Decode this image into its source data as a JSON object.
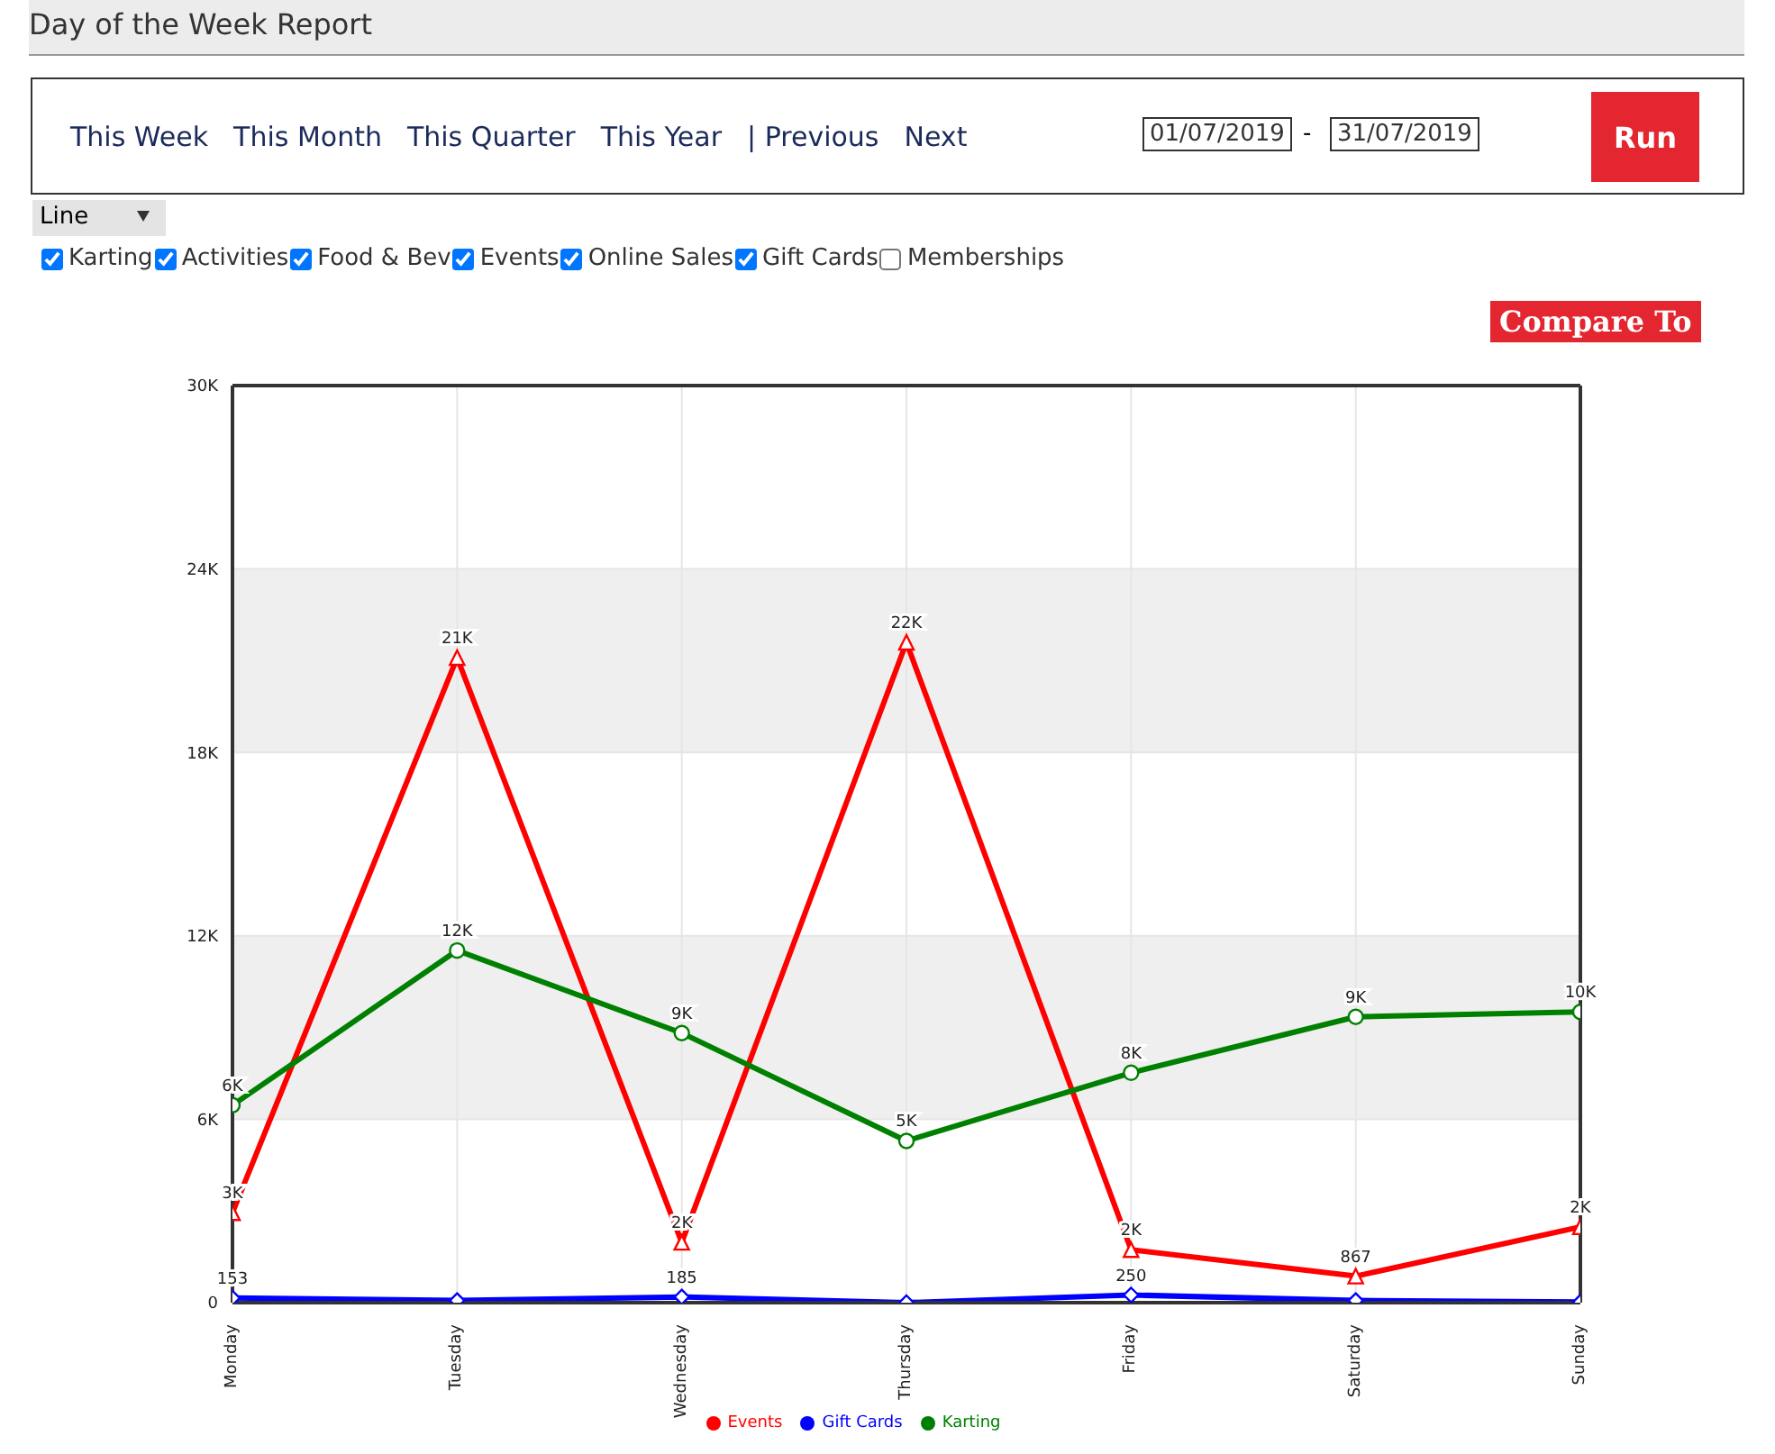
{
  "chart_data": {
    "type": "line",
    "title": "Day of the Week Report",
    "annotations": [
      "This Week",
      "This Month",
      "This Quarter",
      "This Year",
      "| Previous",
      "Next",
      "01/07/2019",
      "-",
      "31/07/2019",
      "Run",
      "Line",
      "Karting",
      "Activities",
      "Food & Bev",
      "Events",
      "Online Sales",
      "Gift Cards",
      "Memberships",
      "Compare To"
    ],
    "categories": [
      "Monday",
      "Tuesday",
      "Wednesday",
      "Thursday",
      "Friday",
      "Saturday",
      "Sunday"
    ],
    "series": [
      {
        "name": "Events",
        "color": "#ff0000",
        "marker": "triangle",
        "values": [
          2940,
          21100,
          1970,
          21600,
          1730,
          867,
          2480
        ],
        "value_labels": [
          "3K",
          "21K",
          "2K",
          "22K",
          "2K",
          "867",
          "2K"
        ]
      },
      {
        "name": "Gift Cards",
        "color": "#0000ff",
        "marker": "diamond",
        "values": [
          153,
          70,
          185,
          0,
          250,
          70,
          20
        ],
        "value_labels": [
          "153",
          null,
          "185",
          null,
          "250",
          null,
          null
        ]
      },
      {
        "name": "Karting",
        "color": "#008000",
        "marker": "circle",
        "values": [
          6460,
          11520,
          8820,
          5290,
          7520,
          9350,
          9510
        ],
        "value_labels": [
          "6K",
          "12K",
          "9K",
          "5K",
          "8K",
          "9K",
          "10K"
        ]
      }
    ],
    "ylim": [
      0,
      30000
    ],
    "yticks": [
      0,
      {
        "value": 6000,
        "label": "6K"
      },
      {
        "value": 12000,
        "label": "12K"
      },
      {
        "value": 18000,
        "label": "18K"
      },
      {
        "value": 24000,
        "label": "24K"
      },
      {
        "value": 30000,
        "label": "30K"
      }
    ],
    "grid": true,
    "legend": "bottom"
  }
}
